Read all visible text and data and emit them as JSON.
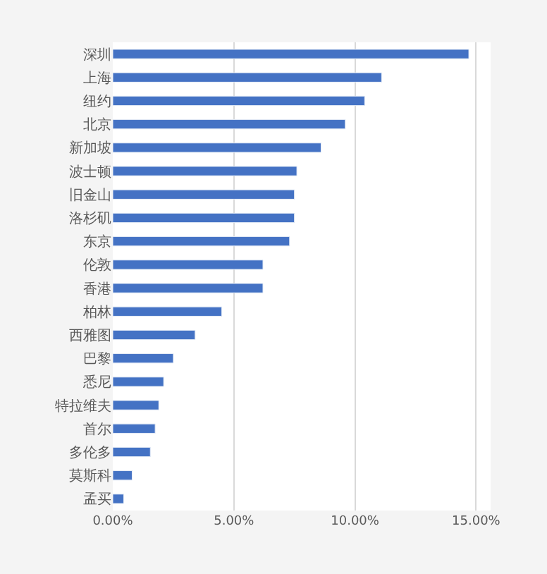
{
  "chart_data": {
    "type": "bar",
    "orientation": "horizontal",
    "categories": [
      "深圳",
      "上海",
      "纽约",
      "北京",
      "新加坡",
      "波士顿",
      "旧金山",
      "洛杉矶",
      "东京",
      "伦敦",
      "香港",
      "柏林",
      "西雅图",
      "巴黎",
      "悉尼",
      "特拉维夫",
      "首尔",
      "多伦多",
      "莫斯科",
      "孟买"
    ],
    "values": [
      14.7,
      11.1,
      10.4,
      9.6,
      8.6,
      7.6,
      7.5,
      7.5,
      7.3,
      6.2,
      6.2,
      4.5,
      3.4,
      2.5,
      2.1,
      1.9,
      1.75,
      1.55,
      0.8,
      0.45
    ],
    "color": "#4472c4",
    "xlim": [
      0,
      15.6
    ],
    "xticks": [
      {
        "value": 0,
        "label": "0.00%"
      },
      {
        "value": 5,
        "label": "5.00%"
      },
      {
        "value": 10,
        "label": "10.00%"
      },
      {
        "value": 15,
        "label": "15.00%"
      }
    ],
    "grid": "x",
    "legend": false
  }
}
